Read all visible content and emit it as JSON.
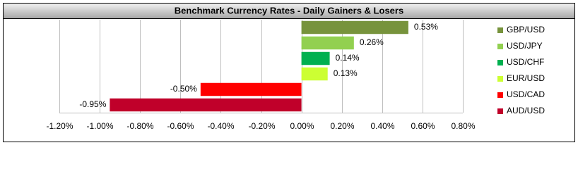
{
  "chart_data": {
    "type": "bar",
    "orientation": "horizontal",
    "title": "Benchmark Currency Rates - Daily Gainers & Losers",
    "categories": [
      "GBP/USD",
      "USD/JPY",
      "USD/CHF",
      "EUR/USD",
      "USD/CAD",
      "AUD/USD"
    ],
    "values": [
      0.53,
      0.26,
      0.14,
      0.13,
      -0.5,
      -0.95
    ],
    "value_labels": [
      "0.53%",
      "0.26%",
      "0.14%",
      "0.13%",
      "-0.50%",
      "-0.95%"
    ],
    "colors": [
      "#77933c",
      "#92d050",
      "#00b050",
      "#ccff33",
      "#ff0000",
      "#c0002a"
    ],
    "xlim": [
      -1.2,
      0.8
    ],
    "xticks": [
      {
        "value": -1.2,
        "label": "-1.20%"
      },
      {
        "value": -1.0,
        "label": "-1.00%"
      },
      {
        "value": -0.8,
        "label": "-0.80%"
      },
      {
        "value": -0.6,
        "label": "-0.60%"
      },
      {
        "value": -0.4,
        "label": "-0.40%"
      },
      {
        "value": -0.2,
        "label": "-0.20%"
      },
      {
        "value": 0,
        "label": "0.00%"
      },
      {
        "value": 0.2,
        "label": "0.20%"
      },
      {
        "value": 0.4,
        "label": "0.40%"
      },
      {
        "value": 0.6,
        "label": "0.60%"
      },
      {
        "value": 0.8,
        "label": "0.80%"
      }
    ],
    "grid": true,
    "legend": "right"
  }
}
